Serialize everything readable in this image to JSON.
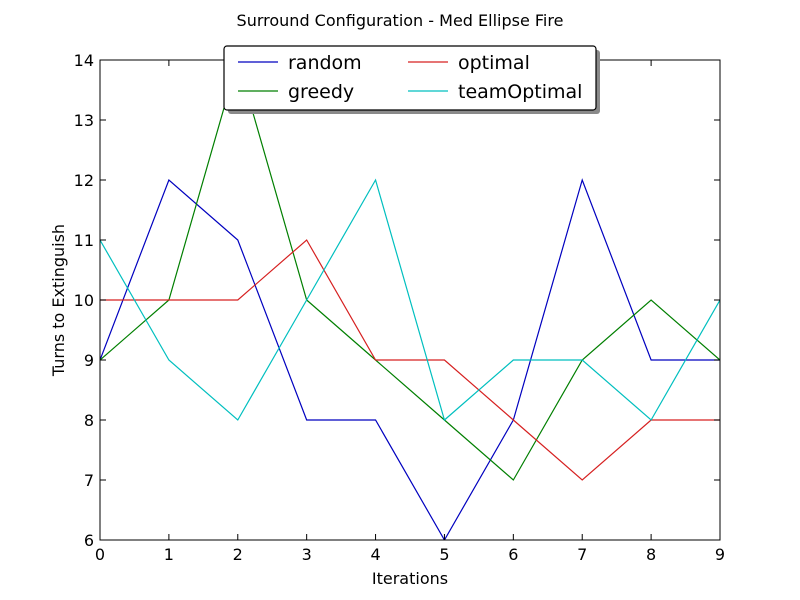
{
  "chart_data": {
    "type": "line",
    "title": "Surround Configuration - Med Ellipse Fire",
    "xlabel": "Iterations",
    "ylabel": "Turns to Extinguish",
    "xlim": [
      0,
      9
    ],
    "ylim": [
      6,
      14
    ],
    "x": [
      0,
      1,
      2,
      3,
      4,
      5,
      6,
      7,
      8,
      9
    ],
    "xticks": [
      "0",
      "1",
      "2",
      "3",
      "4",
      "5",
      "6",
      "7",
      "8",
      "9"
    ],
    "yticks": [
      "6",
      "7",
      "8",
      "9",
      "10",
      "11",
      "12",
      "13",
      "14"
    ],
    "grid": false,
    "legend_position": "top-center",
    "series": [
      {
        "name": "random",
        "color": "#0000bf",
        "values": [
          9,
          12,
          11,
          8,
          8,
          6,
          8,
          12,
          9,
          9
        ]
      },
      {
        "name": "greedy",
        "color": "#007f00",
        "values": [
          9,
          10,
          14,
          10,
          9,
          8,
          7,
          9,
          10,
          9
        ]
      },
      {
        "name": "optimal",
        "color": "#d62020",
        "values": [
          10,
          10,
          10,
          11,
          9,
          9,
          8,
          7,
          8,
          8
        ]
      },
      {
        "name": "teamOptimal",
        "color": "#00bfbf",
        "values": [
          11,
          9,
          8,
          10,
          12,
          8,
          9,
          9,
          8,
          10
        ]
      }
    ]
  }
}
